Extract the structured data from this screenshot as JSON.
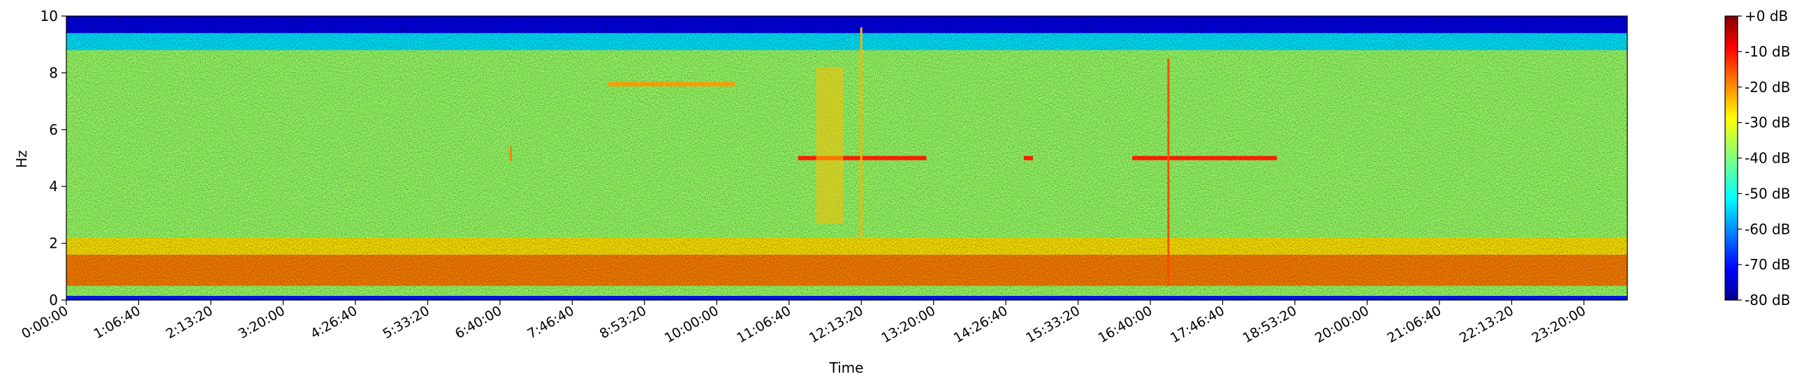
{
  "chart_data": {
    "type": "heatmap",
    "title": "",
    "xlabel": "Time",
    "ylabel": "Hz",
    "ylim": [
      0,
      10
    ],
    "xlim_seconds": [
      0,
      86400
    ],
    "x_ticks": [
      {
        "label": "0:00:00",
        "seconds": 0
      },
      {
        "label": "1:06:40",
        "seconds": 4000
      },
      {
        "label": "2:13:20",
        "seconds": 8000
      },
      {
        "label": "3:20:00",
        "seconds": 12000
      },
      {
        "label": "4:26:40",
        "seconds": 16000
      },
      {
        "label": "5:33:20",
        "seconds": 20000
      },
      {
        "label": "6:40:00",
        "seconds": 24000
      },
      {
        "label": "7:46:40",
        "seconds": 28000
      },
      {
        "label": "8:53:20",
        "seconds": 32000
      },
      {
        "label": "10:00:00",
        "seconds": 36000
      },
      {
        "label": "11:06:40",
        "seconds": 40000
      },
      {
        "label": "12:13:20",
        "seconds": 44000
      },
      {
        "label": "13:20:00",
        "seconds": 48000
      },
      {
        "label": "14:26:40",
        "seconds": 52000
      },
      {
        "label": "15:33:20",
        "seconds": 56000
      },
      {
        "label": "16:40:00",
        "seconds": 60000
      },
      {
        "label": "17:46:40",
        "seconds": 64000
      },
      {
        "label": "18:53:20",
        "seconds": 68000
      },
      {
        "label": "20:00:00",
        "seconds": 72000
      },
      {
        "label": "21:06:40",
        "seconds": 76000
      },
      {
        "label": "22:13:20",
        "seconds": 80000
      },
      {
        "label": "23:20:00",
        "seconds": 84000
      }
    ],
    "y_ticks": [
      "0",
      "2",
      "4",
      "6",
      "8",
      "10"
    ],
    "y_tick_values": [
      0,
      2,
      4,
      6,
      8,
      10
    ],
    "colorbar": {
      "range_db": [
        -80,
        0
      ],
      "tick_values": [
        0,
        -10,
        -20,
        -30,
        -40,
        -50,
        -60,
        -70,
        -80
      ],
      "tick_labels": [
        "+0 dB",
        "-10 dB",
        "-20 dB",
        "-30 dB",
        "-40 dB",
        "-50 dB",
        "-60 dB",
        "-70 dB",
        "-80 dB"
      ],
      "colormap": "jet"
    },
    "grid": false,
    "background_levels_db": [
      {
        "freq_range_hz": [
          0,
          0.15
        ],
        "level_db": -68
      },
      {
        "freq_range_hz": [
          0.15,
          0.5
        ],
        "level_db": -38
      },
      {
        "freq_range_hz": [
          0.5,
          1.6
        ],
        "level_db": -20
      },
      {
        "freq_range_hz": [
          1.6,
          2.2
        ],
        "level_db": -28
      },
      {
        "freq_range_hz": [
          2.2,
          8.8
        ],
        "level_db": -38
      },
      {
        "freq_range_hz": [
          8.8,
          9.4
        ],
        "level_db": -52
      },
      {
        "freq_range_hz": [
          9.4,
          10
        ],
        "level_db": -72
      }
    ],
    "features": [
      {
        "kind": "tone",
        "freq_hz": 5.0,
        "time_seconds": [
          40500,
          47600
        ],
        "level_db": -12
      },
      {
        "kind": "tone",
        "freq_hz": 5.0,
        "time_seconds": [
          53000,
          53500
        ],
        "level_db": -12
      },
      {
        "kind": "tone",
        "freq_hz": 5.0,
        "time_seconds": [
          59000,
          67000
        ],
        "level_db": -12
      },
      {
        "kind": "tone",
        "freq_hz": 7.6,
        "time_seconds": [
          30000,
          37000
        ],
        "level_db": -22
      },
      {
        "kind": "impulse",
        "time_seconds": 61000,
        "freq_range_hz": [
          0.5,
          8.5
        ],
        "level_db": -16
      },
      {
        "kind": "impulse",
        "time_seconds": 44000,
        "freq_range_hz": [
          2.2,
          9.6
        ],
        "level_db": -24
      },
      {
        "kind": "impulse",
        "time_seconds": 24600,
        "freq_range_hz": [
          4.9,
          5.4
        ],
        "level_db": -20
      },
      {
        "kind": "broadband",
        "time_seconds": [
          41500,
          43000
        ],
        "freq_range_hz": [
          2.7,
          8.2
        ],
        "level_db": -25
      }
    ]
  }
}
